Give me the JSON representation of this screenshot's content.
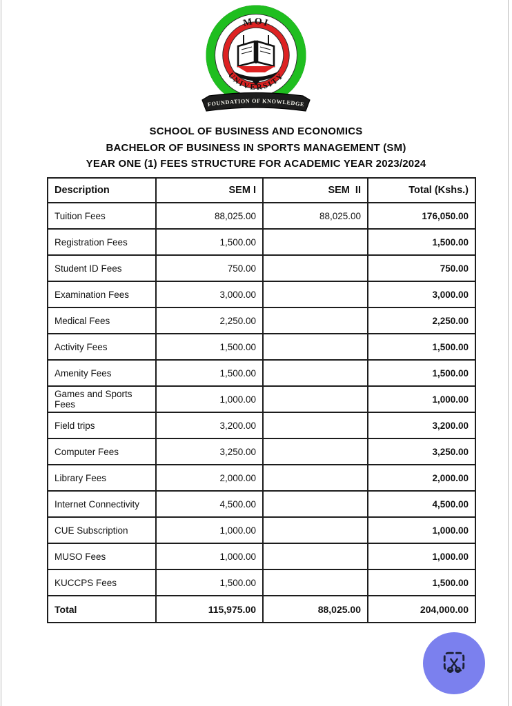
{
  "logo": {
    "top_text": "MOI",
    "bottom_text": "UNIVERSITY",
    "banner_text": "FOUNDATION OF KNOWLEDGE",
    "colors": {
      "ring_green": "#1fbe1f",
      "ring_red": "#dd2222",
      "banner_fill": "#1d1d1d"
    }
  },
  "headings": {
    "line1": "SCHOOL OF BUSINESS AND ECONOMICS",
    "line2": "BACHELOR OF BUSINESS IN SPORTS MANAGEMENT (SM)",
    "line3": "YEAR ONE (1) FEES STRUCTURE FOR ACADEMIC YEAR 2023/2024"
  },
  "table": {
    "headers": [
      "Description",
      "SEM I",
      "SEM  II",
      "Total (Kshs.)"
    ],
    "rows": [
      {
        "description": "Tuition Fees",
        "sem1": "88,025.00",
        "sem2": "88,025.00",
        "total": "176,050.00",
        "is_total": false
      },
      {
        "description": "Registration Fees",
        "sem1": "1,500.00",
        "sem2": "",
        "total": "1,500.00",
        "is_total": false
      },
      {
        "description": "Student ID Fees",
        "sem1": "750.00",
        "sem2": "",
        "total": "750.00",
        "is_total": false
      },
      {
        "description": "Examination Fees",
        "sem1": "3,000.00",
        "sem2": "",
        "total": "3,000.00",
        "is_total": false
      },
      {
        "description": "Medical Fees",
        "sem1": "2,250.00",
        "sem2": "",
        "total": "2,250.00",
        "is_total": false
      },
      {
        "description": "Activity Fees",
        "sem1": "1,500.00",
        "sem2": "",
        "total": "1,500.00",
        "is_total": false
      },
      {
        "description": "Amenity Fees",
        "sem1": "1,500.00",
        "sem2": "",
        "total": "1,500.00",
        "is_total": false
      },
      {
        "description": "Games and Sports Fees",
        "sem1": "1,000.00",
        "sem2": "",
        "total": "1,000.00",
        "is_total": false
      },
      {
        "description": "Field trips",
        "sem1": "3,200.00",
        "sem2": "",
        "total": "3,200.00",
        "is_total": false
      },
      {
        "description": "Computer Fees",
        "sem1": "3,250.00",
        "sem2": "",
        "total": "3,250.00",
        "is_total": false
      },
      {
        "description": "Library Fees",
        "sem1": "2,000.00",
        "sem2": "",
        "total": "2,000.00",
        "is_total": false
      },
      {
        "description": "Internet Connectivity",
        "sem1": "4,500.00",
        "sem2": "",
        "total": "4,500.00",
        "is_total": false
      },
      {
        "description": "CUE Subscription",
        "sem1": "1,000.00",
        "sem2": "",
        "total": "1,000.00",
        "is_total": false
      },
      {
        "description": "MUSO Fees",
        "sem1": "1,000.00",
        "sem2": "",
        "total": "1,000.00",
        "is_total": false
      },
      {
        "description": "KUCCPS Fees",
        "sem1": "1,500.00",
        "sem2": "",
        "total": "1,500.00",
        "is_total": false
      },
      {
        "description": "Total",
        "sem1": "115,975.00",
        "sem2": "88,025.00",
        "total": "204,000.00",
        "is_total": true
      }
    ]
  },
  "fab": {
    "background": "#7b80ee",
    "icon_color": "#1b2033",
    "icon": "crop-scissors"
  }
}
